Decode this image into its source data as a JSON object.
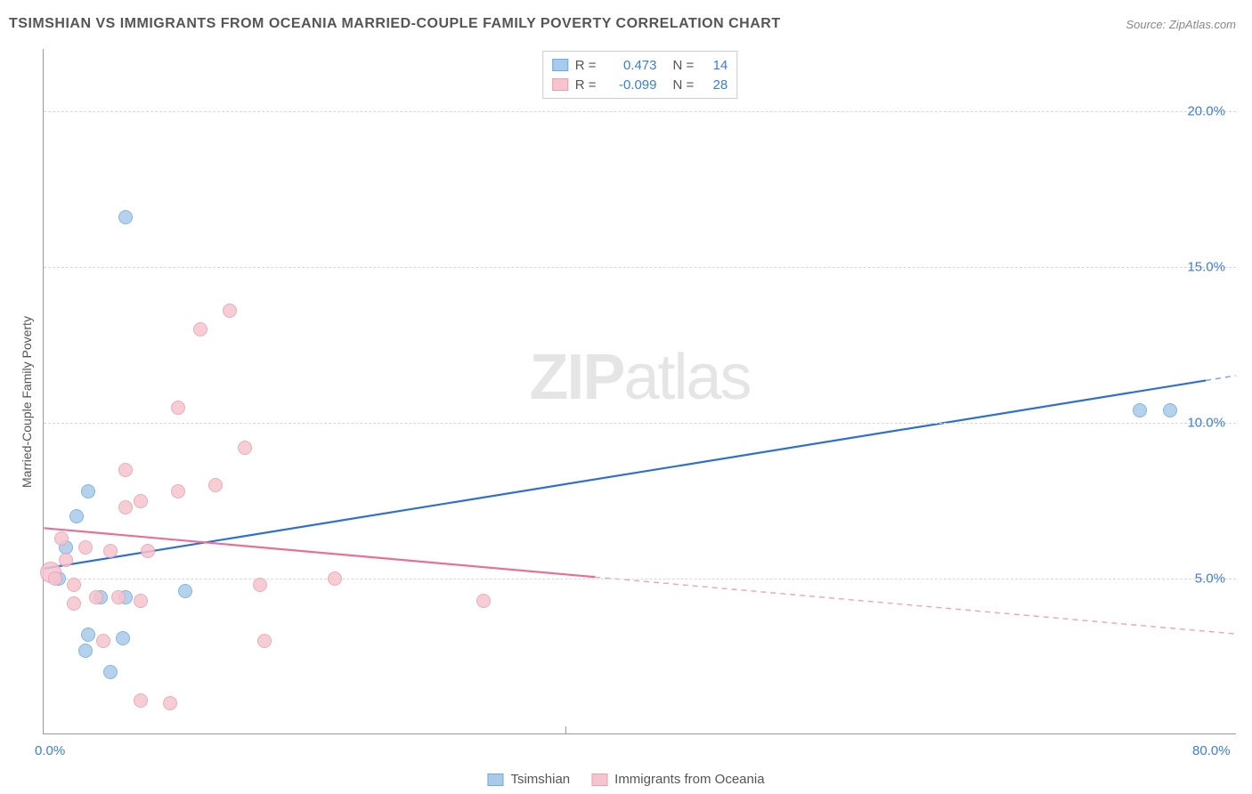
{
  "title": "TSIMSHIAN VS IMMIGRANTS FROM OCEANIA MARRIED-COUPLE FAMILY POVERTY CORRELATION CHART",
  "source": "Source: ZipAtlas.com",
  "ylabel": "Married-Couple Family Poverty",
  "watermark_bold": "ZIP",
  "watermark_rest": "atlas",
  "chart": {
    "type": "scatter",
    "xlim": [
      0,
      80
    ],
    "ylim": [
      0,
      22
    ],
    "ytick_step": 5,
    "yticks": [
      5,
      10,
      15,
      20
    ],
    "ytick_labels": [
      "5.0%",
      "10.0%",
      "15.0%",
      "20.0%"
    ],
    "xticks": [
      0,
      80
    ],
    "xtick_labels": [
      "0.0%",
      "80.0%"
    ],
    "xminor_step": 35,
    "grid_color": "#d8d8d8",
    "background_color": "#ffffff",
    "axis_color": "#999999",
    "tick_text_color": "#3b7dd8",
    "point_radius": 8,
    "series": [
      {
        "name": "Tsimshian",
        "color_fill": "#a9cbeb",
        "color_stroke": "#6fa8de",
        "r": 0.473,
        "n": 14,
        "regression": {
          "x1": 0,
          "y1": 5.3,
          "x2": 80,
          "y2": 11.5,
          "solid_until_x": 78
        },
        "line_color": "#2e6fd1",
        "points": [
          {
            "x": 5.5,
            "y": 16.6
          },
          {
            "x": 1.5,
            "y": 6.0
          },
          {
            "x": 3.0,
            "y": 7.8
          },
          {
            "x": 2.2,
            "y": 7.0
          },
          {
            "x": 3.8,
            "y": 4.4
          },
          {
            "x": 5.5,
            "y": 4.4
          },
          {
            "x": 9.5,
            "y": 4.6
          },
          {
            "x": 3.0,
            "y": 3.2
          },
          {
            "x": 5.3,
            "y": 3.1
          },
          {
            "x": 2.8,
            "y": 2.7
          },
          {
            "x": 4.5,
            "y": 2.0
          },
          {
            "x": 1.0,
            "y": 5.0
          },
          {
            "x": 73.5,
            "y": 10.4
          },
          {
            "x": 75.5,
            "y": 10.4
          }
        ]
      },
      {
        "name": "Immigrants from Oceania",
        "color_fill": "#f5c4ce",
        "color_stroke": "#eb9eb0",
        "r": -0.099,
        "n": 28,
        "regression": {
          "x1": 0,
          "y1": 6.6,
          "x2": 80,
          "y2": 3.2,
          "solid_until_x": 37
        },
        "line_color": "#e96f94",
        "points": [
          {
            "x": 0.5,
            "y": 5.2,
            "size": 12
          },
          {
            "x": 0.8,
            "y": 5.0
          },
          {
            "x": 2.0,
            "y": 4.8
          },
          {
            "x": 1.5,
            "y": 5.6
          },
          {
            "x": 2.8,
            "y": 6.0
          },
          {
            "x": 4.5,
            "y": 5.9
          },
          {
            "x": 7.0,
            "y": 5.9
          },
          {
            "x": 3.5,
            "y": 4.4
          },
          {
            "x": 5.0,
            "y": 4.4
          },
          {
            "x": 6.5,
            "y": 4.3
          },
          {
            "x": 4.0,
            "y": 3.0
          },
          {
            "x": 6.5,
            "y": 1.1
          },
          {
            "x": 8.5,
            "y": 1.0
          },
          {
            "x": 14.8,
            "y": 3.0
          },
          {
            "x": 14.5,
            "y": 4.8
          },
          {
            "x": 19.5,
            "y": 5.0
          },
          {
            "x": 29.5,
            "y": 4.3
          },
          {
            "x": 6.5,
            "y": 7.5
          },
          {
            "x": 5.5,
            "y": 7.3
          },
          {
            "x": 9.0,
            "y": 7.8
          },
          {
            "x": 11.5,
            "y": 8.0
          },
          {
            "x": 5.5,
            "y": 8.5
          },
          {
            "x": 9.0,
            "y": 10.5
          },
          {
            "x": 13.5,
            "y": 9.2
          },
          {
            "x": 10.5,
            "y": 13.0
          },
          {
            "x": 12.5,
            "y": 13.6
          },
          {
            "x": 2.0,
            "y": 4.2
          },
          {
            "x": 1.2,
            "y": 6.3
          }
        ]
      }
    ]
  },
  "legend_top": {
    "rows": [
      {
        "swatch_fill": "#a9cbeb",
        "swatch_stroke": "#6fa8de",
        "r_label": "R =",
        "r_val": "0.473",
        "n_label": "N =",
        "n_val": "14"
      },
      {
        "swatch_fill": "#f5c4ce",
        "swatch_stroke": "#eb9eb0",
        "r_label": "R =",
        "r_val": "-0.099",
        "n_label": "N =",
        "n_val": "28"
      }
    ]
  },
  "legend_bottom": {
    "items": [
      {
        "swatch_fill": "#a9cbeb",
        "swatch_stroke": "#6fa8de",
        "label": "Tsimshian"
      },
      {
        "swatch_fill": "#f5c4ce",
        "swatch_stroke": "#eb9eb0",
        "label": "Immigrants from Oceania"
      }
    ]
  }
}
